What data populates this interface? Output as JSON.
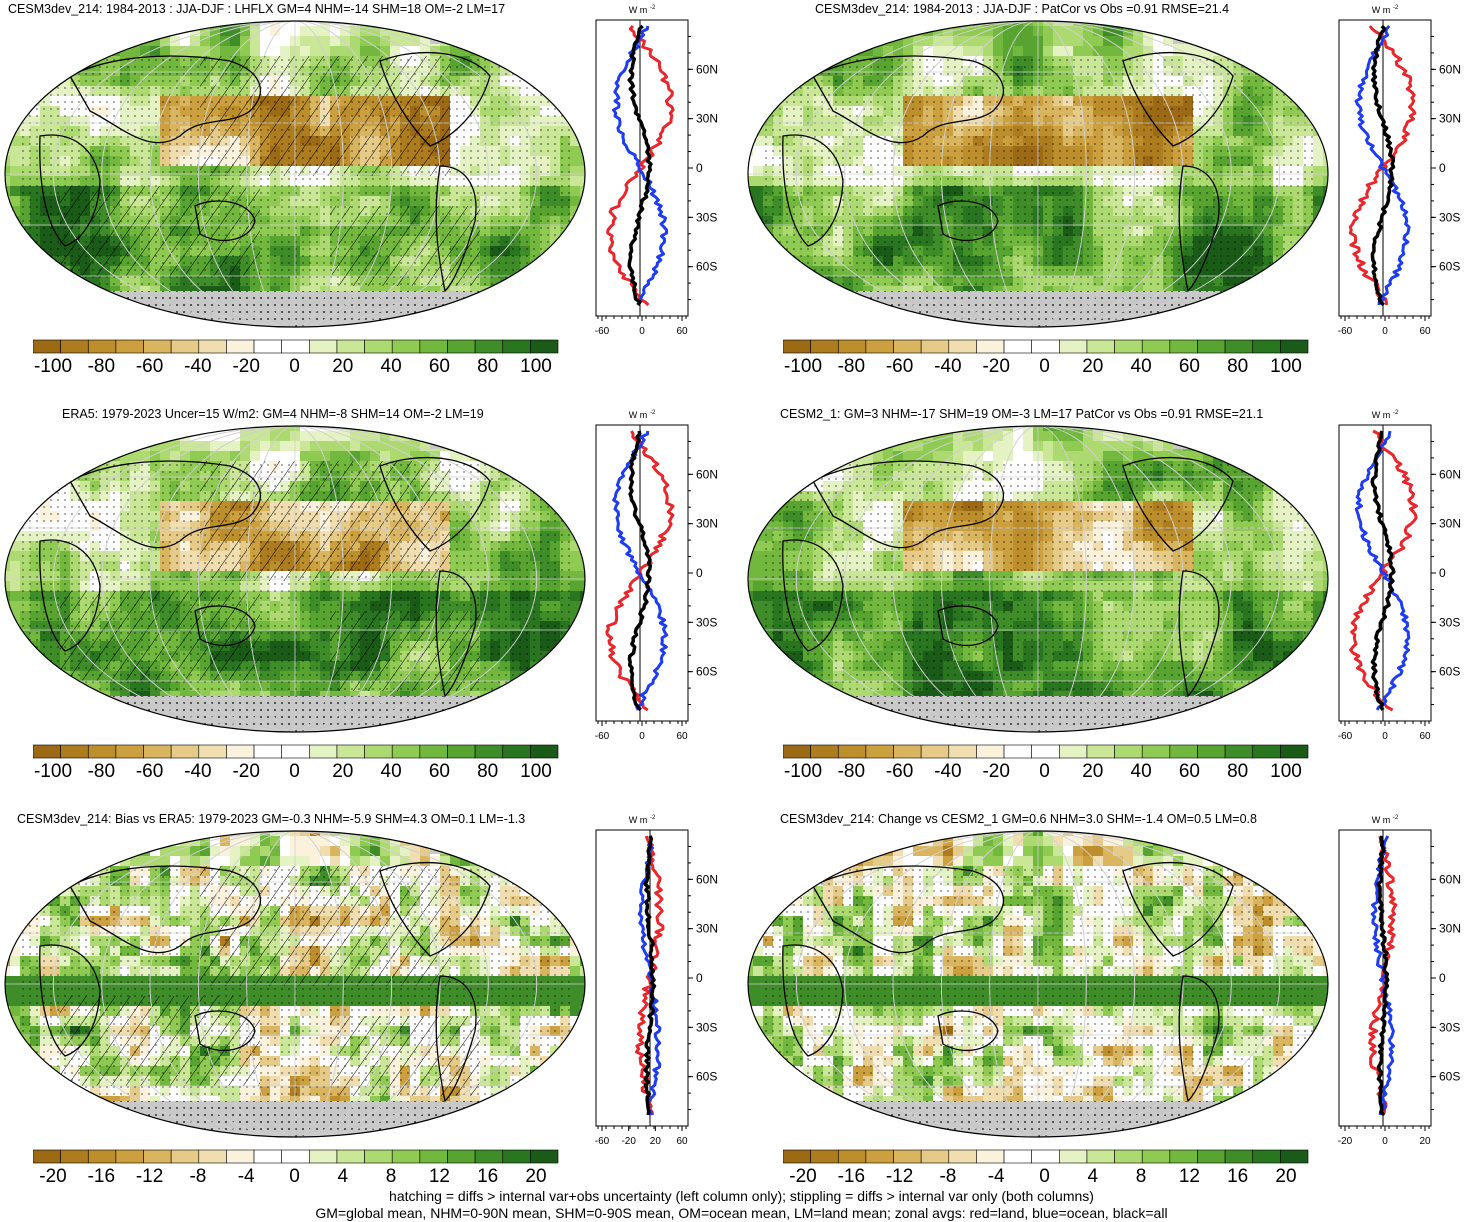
{
  "panels": [
    {
      "title": "CESM3dev_214: 1984-2013 : JJA-DJF : LHFLX GM=4 NHM=-14 SHM=18 OM=-2 LM=17",
      "colorbar_labels": [
        "-100",
        "-80",
        "-60",
        "-40",
        "-20",
        "0",
        "20",
        "40",
        "60",
        "80",
        "100"
      ],
      "zonal_xticks": [
        "-60",
        "0",
        "60"
      ],
      "hatched": true,
      "variant": "mean"
    },
    {
      "title": "CESM3dev_214: 1984-2013 : JJA-DJF : PatCor vs Obs =0.91 RMSE=21.4",
      "colorbar_labels": [
        "-100",
        "-80",
        "-60",
        "-40",
        "-20",
        "0",
        "20",
        "40",
        "60",
        "80",
        "100"
      ],
      "zonal_xticks": [
        "-60",
        "0",
        "60"
      ],
      "hatched": false,
      "variant": "mean"
    },
    {
      "title": "ERA5: 1979-2023 Uncer=15 W/m2: GM=4 NHM=-8 SHM=14 OM=-2 LM=19",
      "colorbar_labels": [
        "-100",
        "-80",
        "-60",
        "-40",
        "-20",
        "0",
        "20",
        "40",
        "60",
        "80",
        "100"
      ],
      "zonal_xticks": [
        "-60",
        "0",
        "60"
      ],
      "hatched": true,
      "variant": "mean"
    },
    {
      "title": "CESM2_1: GM=3 NHM=-17 SHM=19 OM=-3 LM=17 PatCor vs Obs =0.91 RMSE=21.1",
      "colorbar_labels": [
        "-100",
        "-80",
        "-60",
        "-40",
        "-20",
        "0",
        "20",
        "40",
        "60",
        "80",
        "100"
      ],
      "zonal_xticks": [
        "-60",
        "0",
        "60"
      ],
      "hatched": false,
      "variant": "mean"
    },
    {
      "title": "CESM3dev_214: Bias vs ERA5: 1979-2023 GM=-0.3 NHM=-5.9 SHM=4.3 OM=0.1 LM=-1.3",
      "colorbar_labels": [
        "-20",
        "-16",
        "-12",
        "-8",
        "-4",
        "0",
        "4",
        "8",
        "12",
        "16",
        "20"
      ],
      "zonal_xticks": [
        "-60",
        "-20",
        "20",
        "60"
      ],
      "hatched": true,
      "variant": "diff"
    },
    {
      "title": "CESM3dev_214: Change vs CESM2_1 GM=0.6 NHM=3.0 SHM=-1.4 OM=0.5 LM=0.8",
      "colorbar_labels": [
        "-20",
        "-16",
        "-12",
        "-8",
        "-4",
        "0",
        "4",
        "8",
        "12",
        "16",
        "20"
      ],
      "zonal_xticks": [
        "-20",
        "0",
        "20"
      ],
      "hatched": false,
      "variant": "diff"
    }
  ],
  "zonal_units": "W m",
  "zonal_units_exp": "-2",
  "lat_labels": [
    "60N",
    "30N",
    "0",
    "30S",
    "60S"
  ],
  "colors": {
    "land": "#e8262b",
    "ocean": "#1e3cf0",
    "all": "#000000",
    "missing": "#c8c8c8",
    "palette": [
      "#9c6a14",
      "#ad7c1f",
      "#bd8e2c",
      "#cca03e",
      "#d9b560",
      "#e6cb88",
      "#f0deb0",
      "#faf2dc",
      "#ffffff",
      "#ffffff",
      "#e4f2c4",
      "#c9e796",
      "#acd970",
      "#8fca52",
      "#72b83e",
      "#58a431",
      "#3f8d29",
      "#2a7520",
      "#1a5c17"
    ]
  },
  "footer": {
    "line1": "hatching = diffs > internal var+obs uncertainty (left column only); stippling = diffs > internal var only (both columns)",
    "line2": "GM=global mean, NHM=0-90N mean, SHM=0-90S mean, OM=ocean mean, LM=land mean; zonal avgs: red=land, blue=ocean, black=all"
  }
}
